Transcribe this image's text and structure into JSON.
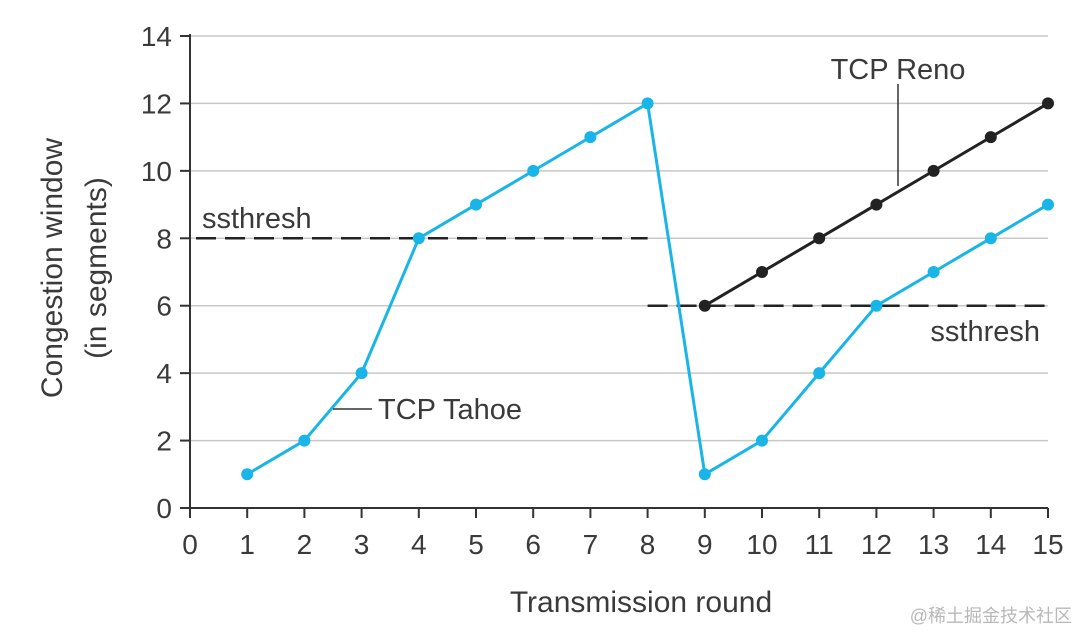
{
  "chart_data": {
    "type": "line",
    "xlabel": "Transmission round",
    "ylabel": [
      "Congestion window",
      "(in segments)"
    ],
    "xlim": [
      0,
      15
    ],
    "ylim": [
      0,
      14
    ],
    "x_ticks": [
      0,
      1,
      2,
      3,
      4,
      5,
      6,
      7,
      8,
      9,
      10,
      11,
      12,
      13,
      14,
      15
    ],
    "y_ticks": [
      0,
      2,
      4,
      6,
      8,
      10,
      12,
      14
    ],
    "grid": "horizontal",
    "series": [
      {
        "name": "TCP Tahoe",
        "color": "#1ab5e8",
        "points": [
          [
            1,
            1
          ],
          [
            2,
            2
          ],
          [
            3,
            4
          ],
          [
            4,
            8
          ],
          [
            5,
            9
          ],
          [
            6,
            10
          ],
          [
            7,
            11
          ],
          [
            8,
            12
          ],
          [
            9,
            1
          ],
          [
            10,
            2
          ],
          [
            11,
            4
          ],
          [
            12,
            6
          ],
          [
            13,
            7
          ],
          [
            14,
            8
          ],
          [
            15,
            9
          ]
        ]
      },
      {
        "name": "TCP Reno",
        "color": "#222222",
        "points": [
          [
            9,
            6
          ],
          [
            10,
            7
          ],
          [
            11,
            8
          ],
          [
            12,
            9
          ],
          [
            13,
            10
          ],
          [
            14,
            11
          ],
          [
            15,
            12
          ]
        ]
      }
    ],
    "thresholds": [
      {
        "label": "ssthresh",
        "y": 8,
        "x_from": 0,
        "x_to": 8
      },
      {
        "label": "ssthresh",
        "y": 6,
        "x_from": 8,
        "x_to": 15
      }
    ]
  },
  "watermark": "@稀土掘金技术社区"
}
